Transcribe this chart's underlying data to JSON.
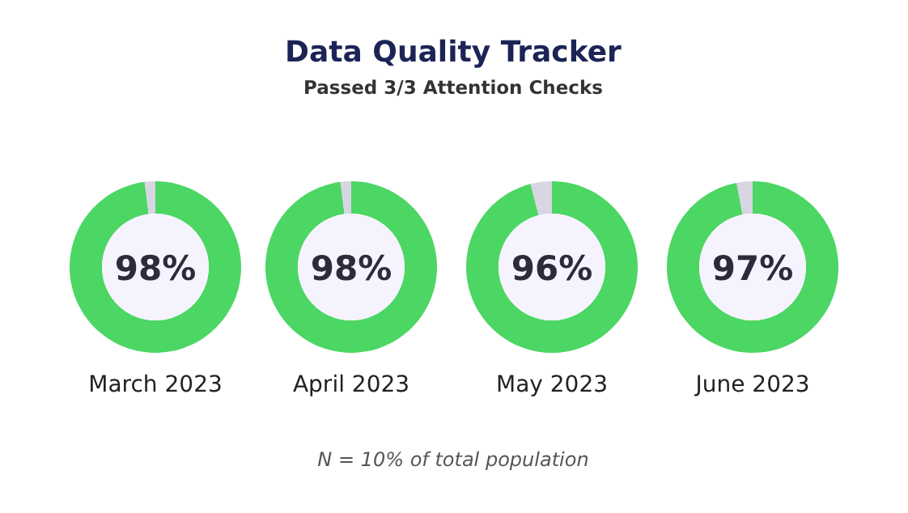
{
  "chart_data": [
    {
      "type": "donut",
      "title": "Data Quality Tracker",
      "subtitle": "Passed 3/3 Attention Checks",
      "annotations": [
        "N = 10% of total population"
      ],
      "xlabel": "March 2023",
      "categories": [
        null,
        null
      ],
      "values": [
        98,
        2
      ],
      "colors": [
        "#4cd664",
        "#d8d6e2"
      ],
      "value_labels": [
        "98%",
        null
      ]
    },
    {
      "type": "donut",
      "xlabel": "April 2023",
      "categories": [
        null,
        null
      ],
      "values": [
        98,
        2
      ],
      "colors": [
        "#4cd664",
        "#d8d6e2"
      ],
      "value_labels": [
        "98%",
        null
      ]
    },
    {
      "type": "donut",
      "xlabel": "May 2023",
      "categories": [
        null,
        null
      ],
      "values": [
        96,
        4
      ],
      "colors": [
        "#4cd664",
        "#d8d6e2"
      ],
      "value_labels": [
        "96%",
        null
      ]
    },
    {
      "type": "donut",
      "xlabel": "June 2023",
      "categories": [
        null,
        null
      ],
      "values": [
        97,
        3
      ],
      "colors": [
        "#4cd664",
        "#d8d6e2"
      ],
      "value_labels": [
        "97%",
        null
      ]
    }
  ]
}
